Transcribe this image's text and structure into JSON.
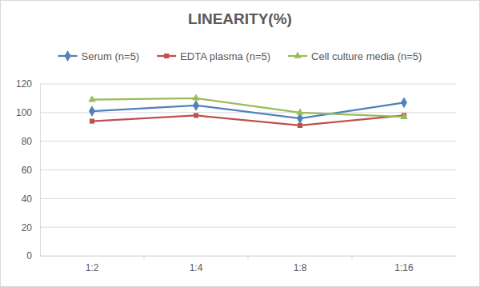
{
  "chart_data": {
    "type": "line",
    "title": "LINEARITY(%)",
    "categories": [
      "1:2",
      "1:4",
      "1:8",
      "1:16"
    ],
    "series": [
      {
        "name": "Serum (n=5)",
        "color": "#4f81bd",
        "marker": "diamond",
        "values": [
          101,
          105,
          96,
          107
        ]
      },
      {
        "name": "EDTA plasma (n=5)",
        "color": "#c0504d",
        "marker": "square",
        "values": [
          94,
          98,
          91,
          98
        ]
      },
      {
        "name": "Cell culture media (n=5)",
        "color": "#9bbb59",
        "marker": "triangle",
        "values": [
          109,
          110,
          100,
          97
        ]
      }
    ],
    "ylim": [
      0,
      120
    ],
    "yticks": [
      0,
      20,
      40,
      60,
      80,
      100,
      120
    ],
    "grid": true,
    "legend": "top"
  }
}
